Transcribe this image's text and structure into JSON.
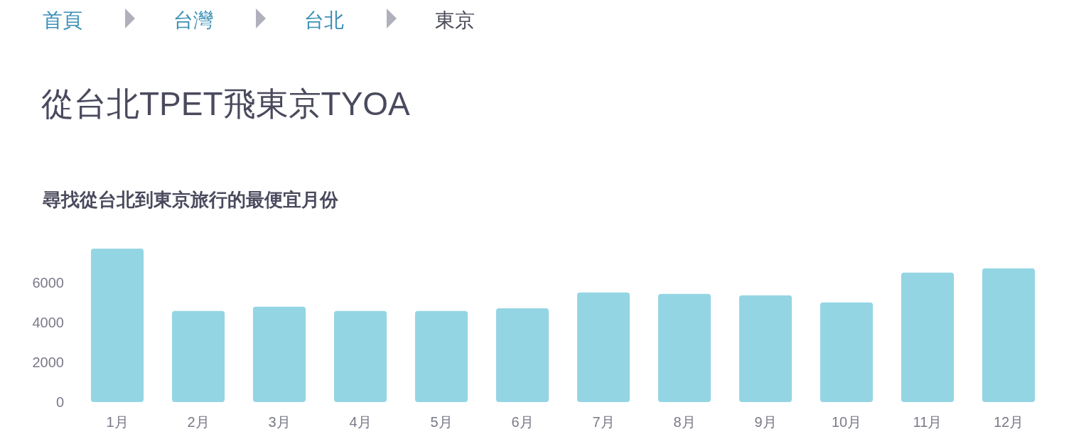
{
  "chart_data": {
    "type": "bar",
    "title": "從台北TPET飛東京TYOA",
    "subtitle": "尋找從台北到東京旅行的最便宜月份",
    "annotations": [
      "首頁",
      "台灣",
      "台北",
      "東京"
    ],
    "categories": [
      "1月",
      "2月",
      "3月",
      "4月",
      "5月",
      "6月",
      "7月",
      "8月",
      "9月",
      "10月",
      "11月",
      "12月"
    ],
    "values": [
      7700,
      4570,
      4790,
      4570,
      4570,
      4710,
      5500,
      5430,
      5360,
      5000,
      6500,
      6710
    ],
    "color": "#94d5e4",
    "ylim": [
      0,
      7700
    ],
    "yticks": [
      0,
      2000,
      4000,
      6000
    ],
    "grid": false
  }
}
